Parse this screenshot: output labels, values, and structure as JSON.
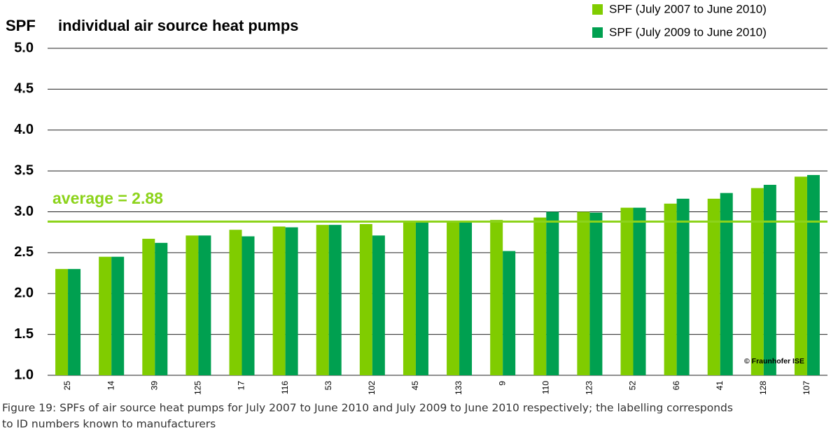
{
  "chart_data": {
    "type": "bar",
    "y_label": "SPF",
    "title": "individual air source heat pumps",
    "categories": [
      "25",
      "14",
      "39",
      "125",
      "17",
      "116",
      "53",
      "102",
      "45",
      "133",
      "9",
      "110",
      "123",
      "52",
      "66",
      "41",
      "128",
      "107"
    ],
    "series": [
      {
        "name": "SPF (July 2007 to June 2010)",
        "color": "#80cc00",
        "values": [
          2.3,
          2.45,
          2.67,
          2.71,
          2.78,
          2.82,
          2.84,
          2.85,
          2.88,
          2.89,
          2.9,
          2.93,
          3.0,
          3.05,
          3.1,
          3.16,
          3.29,
          3.43
        ]
      },
      {
        "name": "SPF (July 2009 to June 2010)",
        "color": "#00a050",
        "values": [
          2.3,
          2.45,
          2.62,
          2.71,
          2.7,
          2.81,
          2.84,
          2.71,
          2.88,
          2.89,
          2.52,
          3.0,
          2.99,
          3.05,
          3.16,
          3.23,
          3.33,
          3.45
        ]
      }
    ],
    "ylim": [
      1.0,
      5.0
    ],
    "yticks": [
      {
        "value": 1.0,
        "label": "1.0"
      },
      {
        "value": 1.5,
        "label": "1.5"
      },
      {
        "value": 2.0,
        "label": "2.0"
      },
      {
        "value": 2.5,
        "label": "2.5"
      },
      {
        "value": 3.0,
        "label": "3.0"
      },
      {
        "value": 3.5,
        "label": "3.5"
      },
      {
        "value": 4.0,
        "label": "4.0"
      },
      {
        "value": 4.5,
        "label": "4.5"
      },
      {
        "value": 5.0,
        "label": "5.0"
      }
    ],
    "grid": true,
    "average": {
      "value": 2.88,
      "label": "average = 2.88",
      "color": "#8cd31a"
    },
    "copyright": "© Fraunhofer ISE",
    "caption": [
      "Figure 19: SPFs of air source heat pumps for July 2007 to June 2010 and July 2009 to June 2010 respectively; the labelling corresponds",
      "to ID numbers known to manufacturers"
    ]
  }
}
